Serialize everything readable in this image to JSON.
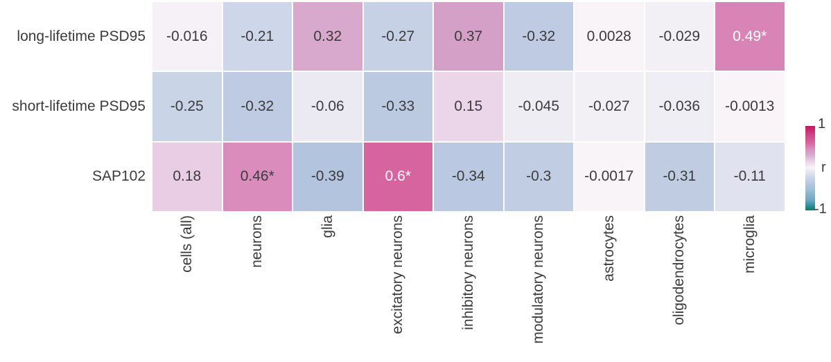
{
  "chart_data": {
    "type": "heatmap",
    "rows": [
      "long-lifetime PSD95",
      "short-lifetime PSD95",
      "SAP102"
    ],
    "columns": [
      "cells (all)",
      "neurons",
      "glia",
      "excitatory neurons",
      "inhibitory neurons",
      "modulatory neurons",
      "astrocytes",
      "oligodendrocytes",
      "microglia"
    ],
    "values": [
      [
        -0.016,
        -0.21,
        0.32,
        -0.27,
        0.37,
        -0.32,
        0.0028,
        -0.029,
        0.49
      ],
      [
        -0.25,
        -0.32,
        -0.06,
        -0.33,
        0.15,
        -0.045,
        -0.027,
        -0.036,
        -0.0013
      ],
      [
        0.18,
        0.46,
        -0.39,
        0.6,
        -0.34,
        -0.3,
        -0.0017,
        -0.31,
        -0.11
      ]
    ],
    "cell_labels": [
      [
        "-0.016",
        "-0.21",
        "0.32",
        "-0.27",
        "0.37",
        "-0.32",
        "0.0028",
        "-0.029",
        "0.49*"
      ],
      [
        "-0.25",
        "-0.32",
        "-0.06",
        "-0.33",
        "0.15",
        "-0.045",
        "-0.027",
        "-0.036",
        "-0.0013"
      ],
      [
        "0.18",
        "0.46*",
        "-0.39",
        "0.6*",
        "-0.34",
        "-0.3",
        "-0.0017",
        "-0.31",
        "-0.11"
      ]
    ],
    "colorbar": {
      "title": "r",
      "top_tick": "1",
      "bottom_tick": "-1",
      "vmin": -1,
      "vmax": 1
    },
    "palette": {
      "positive_max": "#c4175f",
      "negative_max": "#0f7a64",
      "cell_text_dark": "#3b3b3b",
      "cell_text_light": "#ffffff",
      "background": "#ffffff"
    },
    "colormap_stops": [
      {
        "v": -1.0,
        "c": "#0f7a64"
      },
      {
        "v": -0.9,
        "c": "#2d8c96"
      },
      {
        "v": -0.75,
        "c": "#6fa9c2"
      },
      {
        "v": -0.5,
        "c": "#9fc0da"
      },
      {
        "v": -0.39,
        "c": "#b2c4de"
      },
      {
        "v": -0.3,
        "c": "#c1cde3"
      },
      {
        "v": -0.25,
        "c": "#c9d4e7"
      },
      {
        "v": -0.2,
        "c": "#cfd8e9"
      },
      {
        "v": -0.11,
        "c": "#e0e2ef"
      },
      {
        "v": -0.06,
        "c": "#ebeaf3"
      },
      {
        "v": 0.0,
        "c": "#f8f4f7"
      },
      {
        "v": 0.05,
        "c": "#f5ecf4"
      },
      {
        "v": 0.15,
        "c": "#ebd5e8"
      },
      {
        "v": 0.18,
        "c": "#e8cde4"
      },
      {
        "v": 0.32,
        "c": "#d8a9cc"
      },
      {
        "v": 0.37,
        "c": "#d5a0c7"
      },
      {
        "v": 0.46,
        "c": "#da8cbd"
      },
      {
        "v": 0.49,
        "c": "#d884b6"
      },
      {
        "v": 0.6,
        "c": "#d6659f"
      },
      {
        "v": 0.75,
        "c": "#cd4f8b"
      },
      {
        "v": 1.0,
        "c": "#c4175f"
      }
    ]
  }
}
